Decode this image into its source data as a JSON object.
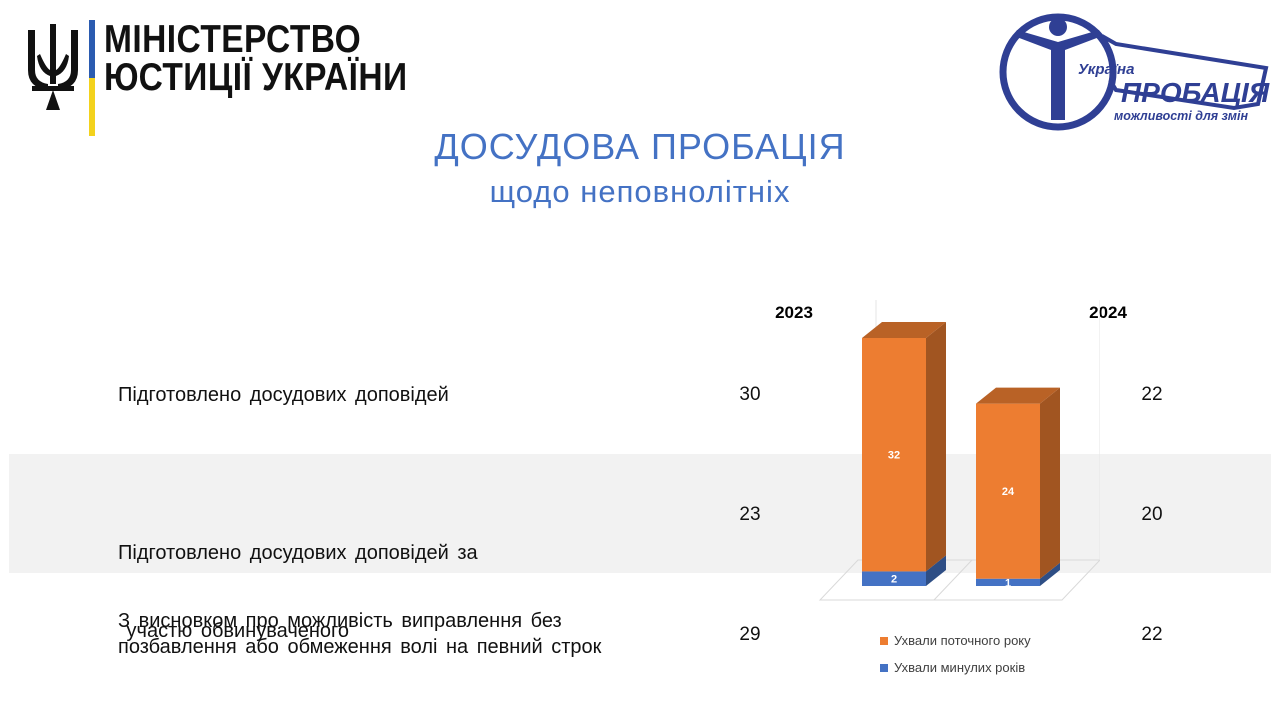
{
  "header": {
    "ministry_line1": "МІНІСТЕРСТВО",
    "ministry_line2": "ЮСТИЦІЇ УКРАЇНИ",
    "probation_logo": {
      "top_text": "Україна",
      "main_text": "ПРОБАЦІЯ",
      "bottom_text": "можливості для змін",
      "color": "#2f3f94"
    }
  },
  "title": {
    "line1": "ДОСУДОВА ПРОБАЦІЯ",
    "line2": "щодо неповнолітніх",
    "color": "#4472c4"
  },
  "table": {
    "years": [
      "2023",
      "2024"
    ],
    "rows": [
      {
        "label_lines": [
          "Підготовлено досудових доповідей"
        ],
        "values": [
          "30",
          "22"
        ]
      },
      {
        "label_lines": [
          "Підготовлено досудових доповідей за",
          " участю обвинуваченого"
        ],
        "values": [
          "23",
          "20"
        ]
      },
      {
        "label_lines": [
          "З висновком про можливість виправлення без",
          "позбавлення або обмеження волі на певний строк"
        ],
        "values": [
          "29",
          "22"
        ]
      }
    ]
  },
  "chart_data": {
    "type": "bar",
    "stacked": true,
    "three_d": true,
    "categories": [
      "2023",
      "2024"
    ],
    "series": [
      {
        "name": "Ухвали минулих років",
        "values": [
          2,
          1
        ],
        "color": "#4472c4"
      },
      {
        "name": "Ухвали поточного року",
        "values": [
          32,
          24
        ],
        "color": "#ed7d31"
      }
    ],
    "legend_position": "bottom",
    "legend_order": [
      "Ухвали поточного року",
      "Ухвали минулих років"
    ],
    "grid": false
  }
}
